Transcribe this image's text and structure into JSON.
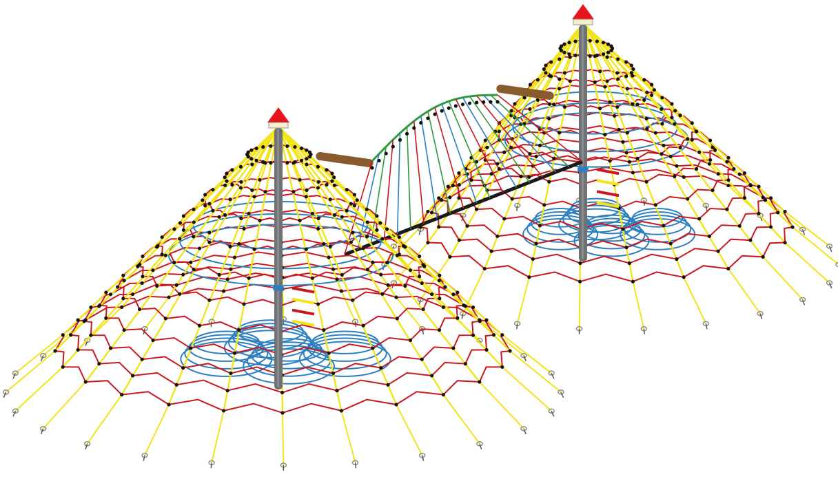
{
  "scene": {
    "subject": "rope-net-climbing-structure",
    "towers": [
      {
        "id": "left",
        "cap_color": "#e8141c"
      },
      {
        "id": "right",
        "cap_color": "#e8141c"
      }
    ],
    "colors": {
      "background": "#ffffff",
      "radial_rope": "#f2e41c",
      "ring_rope": "#c8181e",
      "inner_net": "#2b7fc0",
      "bridge_rope": "#2e9a3c",
      "bridge_side": "#1a1a1a",
      "mast": "#6f7274",
      "mast_highlight": "#8a8d90",
      "beam": "#8a5a2f",
      "knot": "#111111",
      "anchor": "#8c8c8c"
    }
  }
}
